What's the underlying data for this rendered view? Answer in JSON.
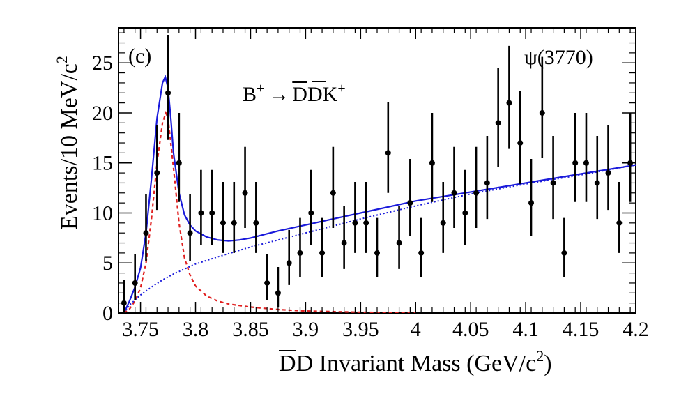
{
  "chart_data": {
    "type": "scatter",
    "panel_label": "(c)",
    "annotation_right": "ψ(3770)",
    "decay": {
      "lhs": "B",
      "lhs_sup": "+",
      "arrow": "→",
      "bar": "D",
      "rest": "DK",
      "rest_sup": "+"
    },
    "xlabel": {
      "bar": "D",
      "rest": "D Invariant Mass (GeV/c",
      "sup": "2",
      "tail": ")"
    },
    "ylabel": {
      "main": "Events/10 MeV/c",
      "sup": "2"
    },
    "xlim": [
      3.73,
      4.2
    ],
    "ylim": [
      0,
      28.5
    ],
    "x_ticks": [
      3.75,
      3.8,
      3.85,
      3.9,
      3.95,
      4.0,
      4.05,
      4.1,
      4.15,
      4.2
    ],
    "x_tick_labels": [
      "3.75",
      "3.8",
      "3.85",
      "3.9",
      "3.95",
      "4",
      "4.05",
      "4.1",
      "4.15",
      "4.2"
    ],
    "y_ticks": [
      0,
      5,
      10,
      15,
      20,
      25
    ],
    "y_tick_labels": [
      "0",
      "5",
      "10",
      "15",
      "20",
      "25"
    ],
    "series": [
      {
        "name": "data",
        "style": "points-with-errors",
        "x": [
          3.735,
          3.745,
          3.755,
          3.765,
          3.775,
          3.785,
          3.795,
          3.805,
          3.815,
          3.825,
          3.835,
          3.845,
          3.855,
          3.865,
          3.875,
          3.885,
          3.895,
          3.905,
          3.915,
          3.925,
          3.935,
          3.945,
          3.955,
          3.965,
          3.975,
          3.985,
          3.995,
          4.005,
          4.015,
          4.025,
          4.035,
          4.045,
          4.055,
          4.065,
          4.075,
          4.085,
          4.095,
          4.105,
          4.115,
          4.125,
          4.135,
          4.145,
          4.155,
          4.165,
          4.175,
          4.185,
          4.195
        ],
        "y": [
          1,
          3,
          8,
          14,
          22,
          15,
          8,
          10,
          10,
          9,
          9,
          12,
          9,
          3,
          2,
          5,
          6,
          10,
          6,
          12,
          7,
          9,
          9,
          6,
          16,
          7,
          11,
          6,
          15,
          9,
          12,
          10,
          12,
          13,
          19,
          21,
          17,
          11,
          20,
          13,
          6,
          15,
          15,
          13,
          14,
          9,
          15
        ],
        "yerr_lo": [
          1,
          1.7,
          2.8,
          3.7,
          4.7,
          3.9,
          2.8,
          3.2,
          3.2,
          3.0,
          3.0,
          3.5,
          3.0,
          1.7,
          1.4,
          2.2,
          2.4,
          3.2,
          2.4,
          3.5,
          2.6,
          3.0,
          3.0,
          2.4,
          4.0,
          2.6,
          3.3,
          2.4,
          3.9,
          3.0,
          3.5,
          3.2,
          3.5,
          3.6,
          4.4,
          4.6,
          4.1,
          3.3,
          4.5,
          3.6,
          2.4,
          3.9,
          3.9,
          3.6,
          3.7,
          3.0,
          3.9
        ],
        "yerr_hi": [
          2.3,
          2.9,
          3.9,
          4.8,
          5.8,
          5.0,
          3.9,
          4.3,
          4.3,
          4.1,
          4.1,
          4.6,
          4.1,
          2.9,
          2.6,
          3.3,
          3.5,
          4.3,
          3.5,
          4.6,
          3.7,
          4.1,
          4.1,
          3.5,
          5.1,
          3.7,
          4.4,
          3.5,
          5.0,
          4.1,
          4.6,
          4.3,
          4.6,
          4.7,
          5.5,
          5.7,
          5.2,
          4.4,
          5.6,
          4.7,
          3.5,
          5.0,
          5.0,
          4.7,
          4.8,
          4.1,
          5.0
        ]
      },
      {
        "name": "total fit",
        "style": "solid",
        "color": "#1a1adb",
        "x": [
          3.735,
          3.74,
          3.745,
          3.75,
          3.755,
          3.76,
          3.765,
          3.77,
          3.7725,
          3.775,
          3.7775,
          3.78,
          3.785,
          3.79,
          3.795,
          3.8,
          3.81,
          3.82,
          3.83,
          3.84,
          3.85,
          3.875,
          3.9,
          3.95,
          4.0,
          4.05,
          4.1,
          4.15,
          4.2
        ],
        "y": [
          0,
          1.2,
          2.6,
          4.5,
          8.0,
          13.5,
          19.5,
          23.0,
          23.6,
          22.5,
          19.5,
          16.0,
          12.0,
          9.8,
          8.8,
          8.2,
          7.6,
          7.3,
          7.2,
          7.3,
          7.5,
          8.2,
          8.8,
          10.0,
          11.2,
          12.1,
          13.0,
          13.9,
          14.8
        ]
      },
      {
        "name": "signal",
        "style": "dashed",
        "color": "#e02020",
        "x": [
          3.735,
          3.74,
          3.745,
          3.75,
          3.755,
          3.76,
          3.765,
          3.77,
          3.773,
          3.775,
          3.78,
          3.785,
          3.79,
          3.795,
          3.8,
          3.81,
          3.82,
          3.83,
          3.85,
          3.875,
          3.9,
          3.95,
          4.0
        ],
        "y": [
          0,
          0.4,
          1.2,
          2.5,
          5.0,
          9.5,
          15.0,
          19.0,
          20.0,
          19.5,
          14.5,
          9.0,
          5.5,
          3.8,
          2.7,
          1.7,
          1.2,
          0.9,
          0.6,
          0.35,
          0.2,
          0.08,
          0.02
        ]
      },
      {
        "name": "background",
        "style": "dotted",
        "color": "#1a1adb",
        "x": [
          3.735,
          3.74,
          3.75,
          3.76,
          3.77,
          3.78,
          3.8,
          3.82,
          3.85,
          3.9,
          3.95,
          4.0,
          4.05,
          4.1,
          4.15,
          4.2
        ],
        "y": [
          0,
          0.8,
          1.8,
          2.6,
          3.3,
          3.9,
          4.9,
          5.6,
          6.6,
          8.0,
          9.4,
          10.7,
          11.9,
          12.9,
          13.8,
          14.8
        ]
      }
    ]
  }
}
